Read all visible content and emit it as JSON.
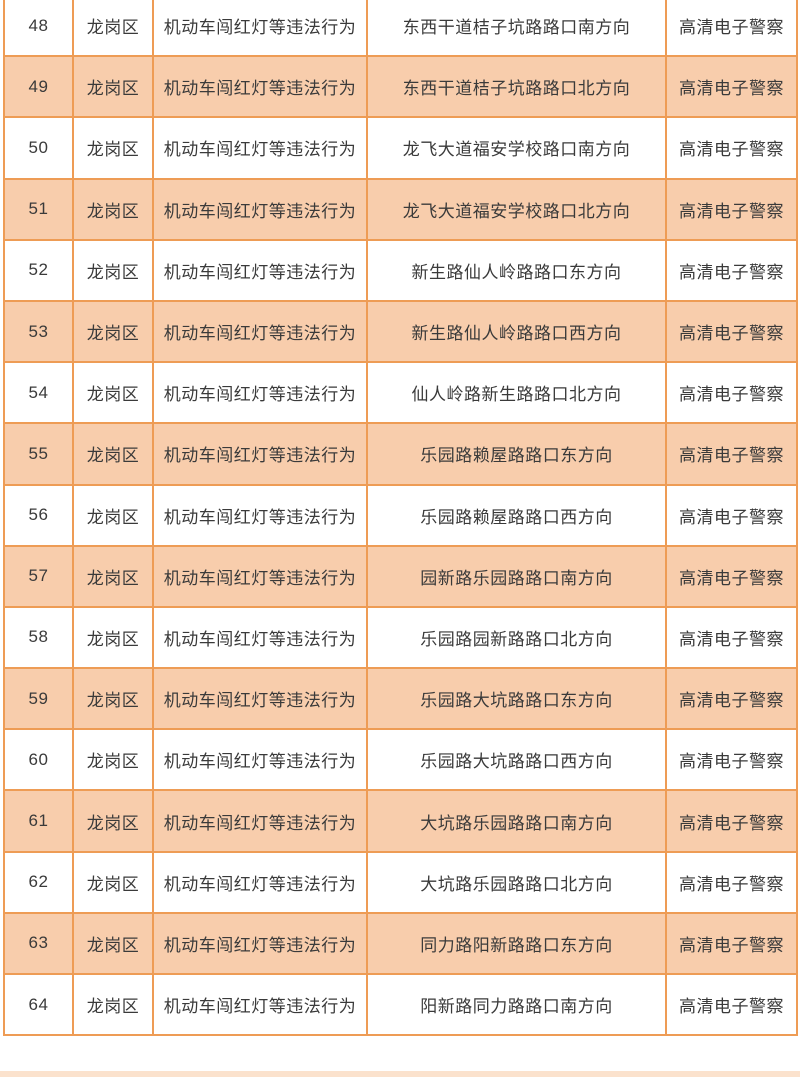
{
  "colors": {
    "border": "#EE9C55",
    "row_shade": "#F8CDAC",
    "text": "#3A3A3A",
    "bottom_strip": "#FBE2CD",
    "page_background": "#FFFFFF"
  },
  "table": {
    "description": "traffic-violation-camera-location-table",
    "rows": [
      {
        "no": "48",
        "district": "龙岗区",
        "violation": "机动车闯红灯等违法行为",
        "location": "东西干道桔子坑路路口南方向",
        "device": "高清电子警察"
      },
      {
        "no": "49",
        "district": "龙岗区",
        "violation": "机动车闯红灯等违法行为",
        "location": "东西干道桔子坑路路口北方向",
        "device": "高清电子警察"
      },
      {
        "no": "50",
        "district": "龙岗区",
        "violation": "机动车闯红灯等违法行为",
        "location": "龙飞大道福安学校路口南方向",
        "device": "高清电子警察"
      },
      {
        "no": "51",
        "district": "龙岗区",
        "violation": "机动车闯红灯等违法行为",
        "location": "龙飞大道福安学校路口北方向",
        "device": "高清电子警察"
      },
      {
        "no": "52",
        "district": "龙岗区",
        "violation": "机动车闯红灯等违法行为",
        "location": "新生路仙人岭路路口东方向",
        "device": "高清电子警察"
      },
      {
        "no": "53",
        "district": "龙岗区",
        "violation": "机动车闯红灯等违法行为",
        "location": "新生路仙人岭路路口西方向",
        "device": "高清电子警察"
      },
      {
        "no": "54",
        "district": "龙岗区",
        "violation": "机动车闯红灯等违法行为",
        "location": "仙人岭路新生路路口北方向",
        "device": "高清电子警察"
      },
      {
        "no": "55",
        "district": "龙岗区",
        "violation": "机动车闯红灯等违法行为",
        "location": "乐园路赖屋路路口东方向",
        "device": "高清电子警察"
      },
      {
        "no": "56",
        "district": "龙岗区",
        "violation": "机动车闯红灯等违法行为",
        "location": "乐园路赖屋路路口西方向",
        "device": "高清电子警察"
      },
      {
        "no": "57",
        "district": "龙岗区",
        "violation": "机动车闯红灯等违法行为",
        "location": "园新路乐园路路口南方向",
        "device": "高清电子警察"
      },
      {
        "no": "58",
        "district": "龙岗区",
        "violation": "机动车闯红灯等违法行为",
        "location": "乐园路园新路路口北方向",
        "device": "高清电子警察"
      },
      {
        "no": "59",
        "district": "龙岗区",
        "violation": "机动车闯红灯等违法行为",
        "location": "乐园路大坑路路口东方向",
        "device": "高清电子警察"
      },
      {
        "no": "60",
        "district": "龙岗区",
        "violation": "机动车闯红灯等违法行为",
        "location": "乐园路大坑路路口西方向",
        "device": "高清电子警察"
      },
      {
        "no": "61",
        "district": "龙岗区",
        "violation": "机动车闯红灯等违法行为",
        "location": "大坑路乐园路路口南方向",
        "device": "高清电子警察"
      },
      {
        "no": "62",
        "district": "龙岗区",
        "violation": "机动车闯红灯等违法行为",
        "location": "大坑路乐园路路口北方向",
        "device": "高清电子警察"
      },
      {
        "no": "63",
        "district": "龙岗区",
        "violation": "机动车闯红灯等违法行为",
        "location": "同力路阳新路路口东方向",
        "device": "高清电子警察"
      },
      {
        "no": "64",
        "district": "龙岗区",
        "violation": "机动车闯红灯等违法行为",
        "location": "阳新路同力路路口南方向",
        "device": "高清电子警察"
      }
    ]
  }
}
